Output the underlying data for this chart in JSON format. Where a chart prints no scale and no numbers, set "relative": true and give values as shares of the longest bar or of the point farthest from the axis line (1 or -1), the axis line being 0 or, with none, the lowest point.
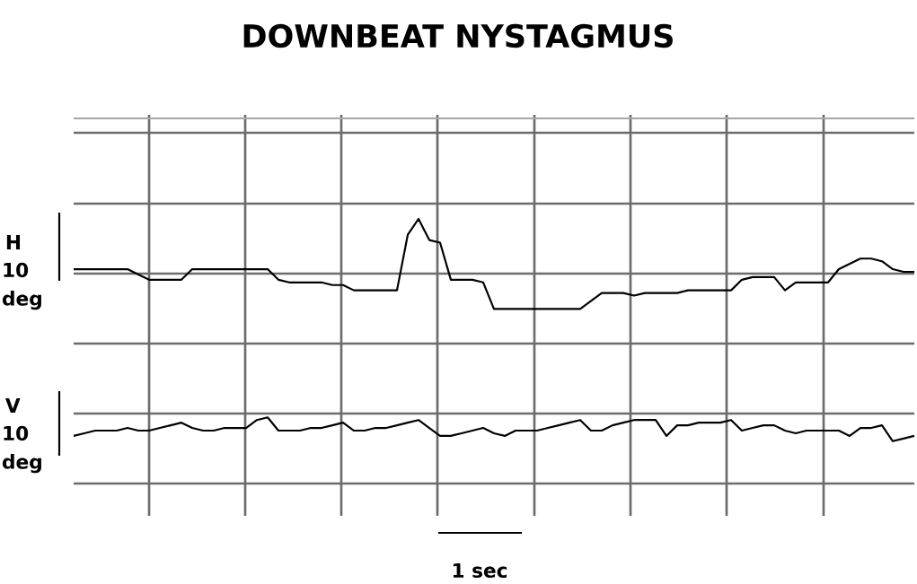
{
  "chart_data": {
    "type": "line",
    "title": "DOWNBEAT NYSTAGMUS",
    "relative": true,
    "grid": true,
    "categories": [
      null,
      null,
      null,
      null,
      null,
      null,
      null,
      null,
      null,
      null,
      null,
      null,
      null,
      null,
      null,
      null,
      null,
      null,
      null,
      null,
      null,
      null,
      null,
      null,
      null,
      null,
      null,
      null,
      null,
      null,
      null,
      null,
      null,
      null,
      null,
      null,
      null,
      null,
      null,
      null,
      null,
      null,
      null,
      null,
      null,
      null,
      null,
      null,
      null,
      null,
      null,
      null,
      null,
      null,
      null,
      null,
      null,
      null,
      null,
      null,
      null,
      null,
      null,
      null,
      null,
      null,
      null,
      null,
      null,
      null,
      null,
      null,
      null,
      null,
      null,
      null,
      null,
      null,
      null
    ],
    "series": [
      {
        "name": "H",
        "color": "#000000",
        "values": [
          0.81,
          0.81,
          0.81,
          0.81,
          0.81,
          0.81,
          0.79,
          0.77,
          0.77,
          0.77,
          0.77,
          0.81,
          0.81,
          0.81,
          0.81,
          0.81,
          0.81,
          0.81,
          0.81,
          0.77,
          0.76,
          0.76,
          0.76,
          0.76,
          0.75,
          0.75,
          0.73,
          0.73,
          0.73,
          0.73,
          0.73,
          0.94,
          1,
          0.92,
          0.91,
          0.77,
          0.77,
          0.77,
          0.76,
          0.66,
          0.66,
          0.66,
          0.66,
          0.66,
          0.66,
          0.66,
          0.66,
          0.66,
          0.69,
          0.72,
          0.72,
          0.72,
          0.71,
          0.72,
          0.72,
          0.72,
          0.72,
          0.73,
          0.73,
          0.73,
          0.73,
          0.73,
          0.77,
          0.78,
          0.78,
          0.78,
          0.73,
          0.76,
          0.76,
          0.76,
          0.76,
          0.81,
          0.83,
          0.85,
          0.85,
          0.84,
          0.81,
          0.8,
          0.8
        ]
      },
      {
        "name": "V",
        "color": "#000000",
        "values": [
          0.18,
          0.19,
          0.2,
          0.2,
          0.2,
          0.21,
          0.2,
          0.2,
          0.21,
          0.22,
          0.23,
          0.21,
          0.2,
          0.2,
          0.21,
          0.21,
          0.21,
          0.24,
          0.25,
          0.2,
          0.2,
          0.2,
          0.21,
          0.21,
          0.22,
          0.23,
          0.2,
          0.2,
          0.21,
          0.21,
          0.22,
          0.23,
          0.24,
          0.21,
          0.18,
          0.18,
          0.19,
          0.2,
          0.21,
          0.19,
          0.18,
          0.2,
          0.2,
          0.2,
          0.21,
          0.22,
          0.23,
          0.24,
          0.2,
          0.2,
          0.22,
          0.23,
          0.24,
          0.24,
          0.24,
          0.18,
          0.22,
          0.22,
          0.23,
          0.23,
          0.23,
          0.24,
          0.2,
          0.21,
          0.22,
          0.22,
          0.2,
          0.19,
          0.2,
          0.2,
          0.2,
          0.2,
          0.18,
          0.21,
          0.21,
          0.22,
          0.16,
          0.17,
          0.18
        ]
      }
    ],
    "annotations": [
      "10 deg",
      "10 deg",
      "1 sec"
    ]
  }
}
